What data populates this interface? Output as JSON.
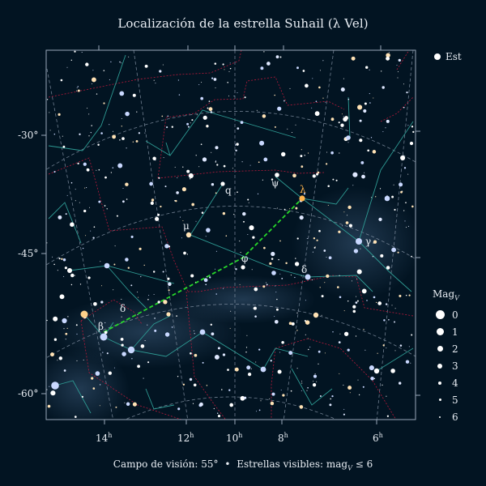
{
  "title": "Localización de la estrella Suhail (λ Vel)",
  "legend_target": "Est",
  "mag_legend": {
    "header": "Mag",
    "header_sub": "V",
    "levels": [
      "0",
      "1",
      "2",
      "3",
      "4",
      "5",
      "6"
    ]
  },
  "dec_labels": [
    "-30°",
    "-45°",
    "-60°"
  ],
  "ra_labels": [
    {
      "h": "14",
      "sup": "h"
    },
    {
      "h": "12",
      "sup": "h"
    },
    {
      "h": "10",
      "sup": "h"
    },
    {
      "h": "8",
      "sup": "h"
    },
    {
      "h": "6",
      "sup": "h"
    }
  ],
  "star_labels": [
    "q",
    "ψ",
    "λ",
    "μ",
    "φ",
    "δ",
    "γ",
    "δ",
    "β"
  ],
  "footer": {
    "fov": "Campo de visión: 55°",
    "bullet": "•",
    "visible": "Estrellas visibles: mag",
    "visible_sub": "V",
    "visible_tail": " ≤ 6"
  },
  "colors": {
    "background": "#021422",
    "frame": "#9aa9ba",
    "grid": "#8391a3",
    "constellation_line": "#2e9a93",
    "boundary": "#b8193a",
    "path": "#27d82b",
    "target": "#ffb44c"
  }
}
